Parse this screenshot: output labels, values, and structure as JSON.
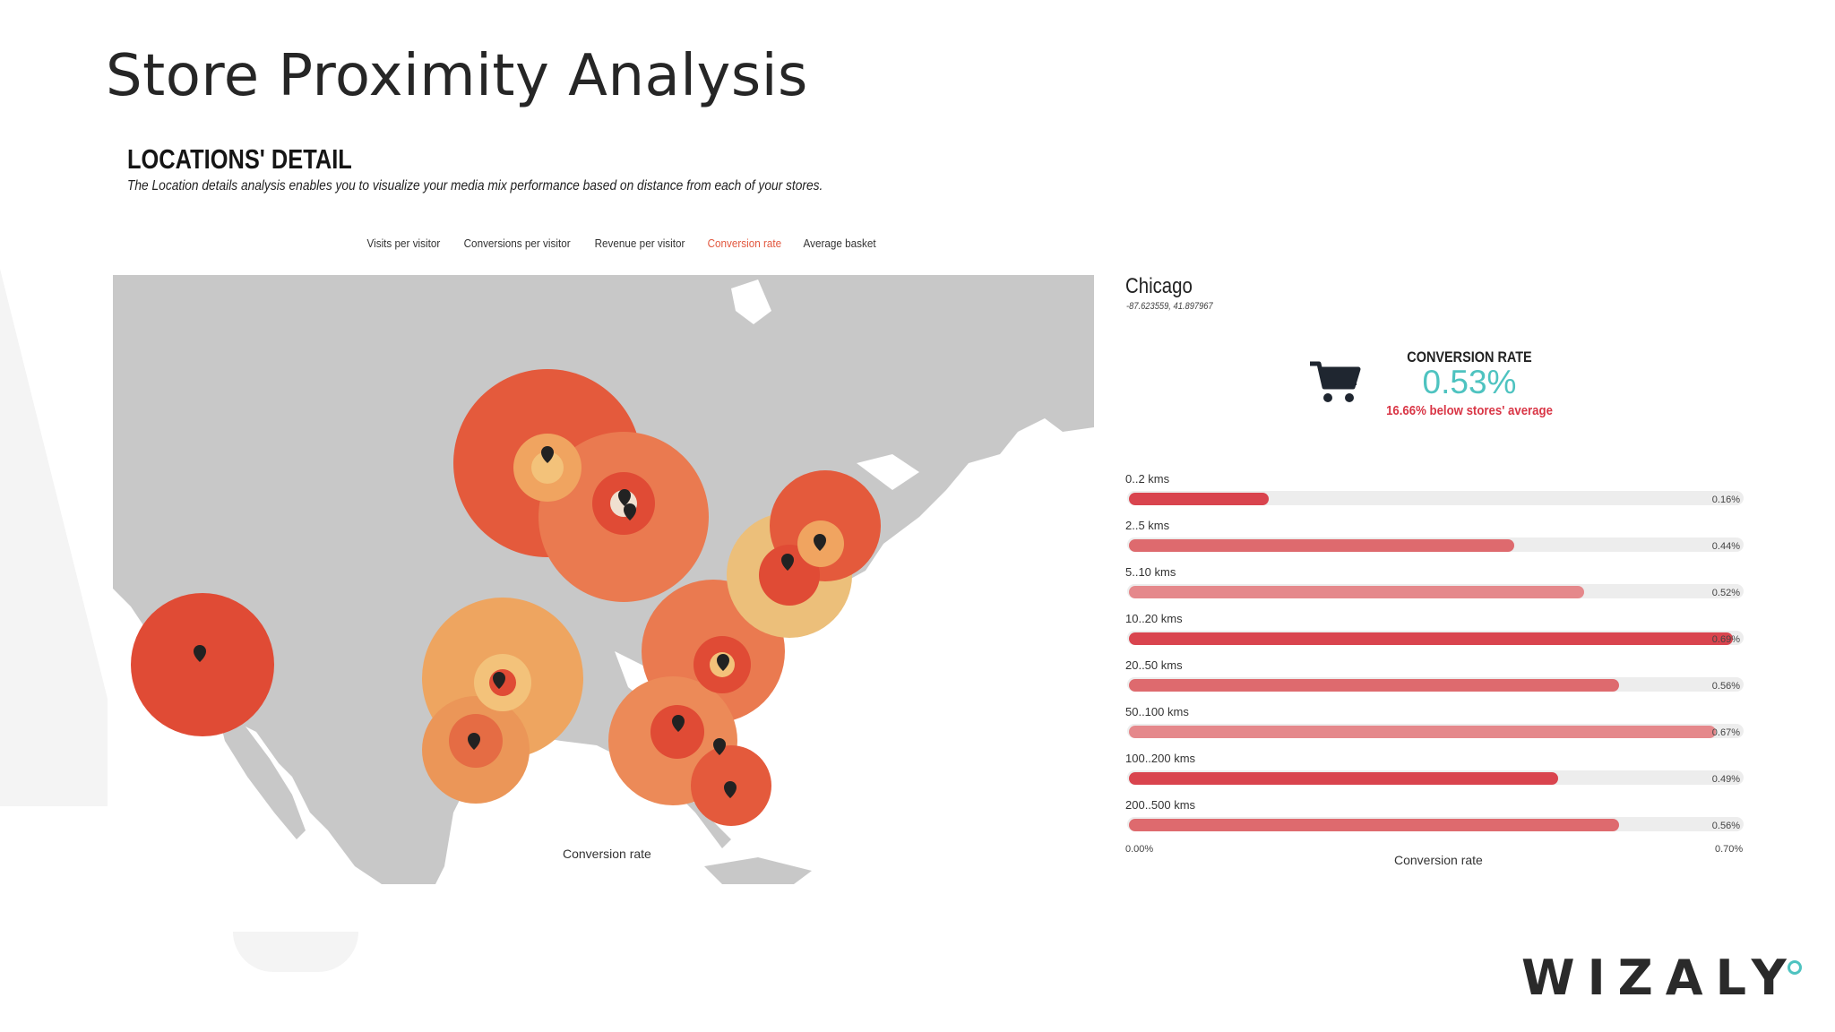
{
  "slide": {
    "title": "Store Proximity Analysis",
    "logo": "WIZALY"
  },
  "section": {
    "title": "LOCATIONS' DETAIL",
    "description": "The Location details analysis enables you to visualize your media mix performance based on distance from each of your stores."
  },
  "tabs": [
    {
      "label": "Visits per visitor",
      "active": false
    },
    {
      "label": "Conversions per visitor",
      "active": false
    },
    {
      "label": "Revenue per visitor",
      "active": false
    },
    {
      "label": "Conversion rate",
      "active": true
    },
    {
      "label": "Average basket",
      "active": false
    }
  ],
  "map": {
    "label": "Conversion rate",
    "icon": "map-pin-icon"
  },
  "detail": {
    "city": "Chicago",
    "coordinates": "-87.623559, 41.897967",
    "metric_label": "CONVERSION RATE",
    "metric_value": "0.53%",
    "comparison": "16.66% below stores' average",
    "icon": "shopping-cart-icon"
  },
  "colors": {
    "accent_teal": "#4ec3c0",
    "negative_red": "#d93646",
    "active_tab": "#e2573e",
    "bar_dark": "#d9444e",
    "bar_mid": "#de6a6e",
    "bar_light": "#e5888b"
  },
  "chart_data": {
    "type": "bar",
    "orientation": "horizontal",
    "categories": [
      "0..2 kms",
      "2..5 kms",
      "5..10 kms",
      "10..20 kms",
      "20..50 kms",
      "50..100 kms",
      "100..200 kms",
      "200..500 kms"
    ],
    "values": [
      0.16,
      0.44,
      0.52,
      0.69,
      0.56,
      0.67,
      0.49,
      0.56
    ],
    "value_labels": [
      "0.16%",
      "0.44%",
      "0.52%",
      "0.69%",
      "0.56%",
      "0.67%",
      "0.49%",
      "0.56%"
    ],
    "xlim": [
      0,
      0.7
    ],
    "xtick_labels": [
      "0.00%",
      "0.70%"
    ],
    "xlabel": "Conversion rate",
    "bar_colors": [
      "#d9444e",
      "#de6a6e",
      "#e5888b",
      "#d9444e",
      "#de6a6e",
      "#e5888b",
      "#d9444e",
      "#de6a6e"
    ],
    "grid": false
  }
}
